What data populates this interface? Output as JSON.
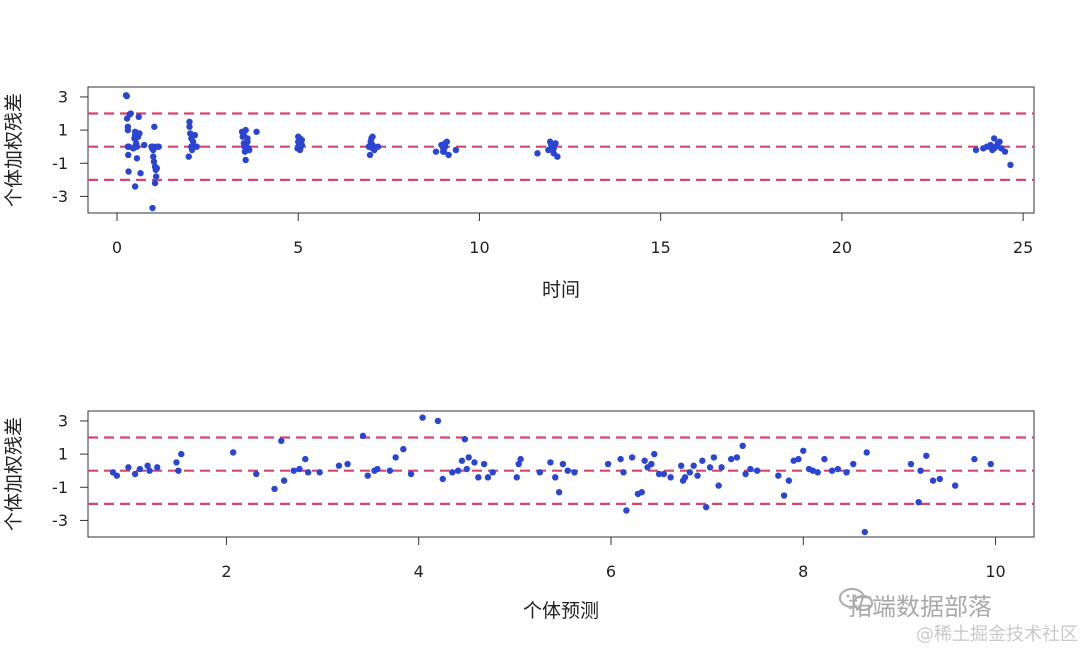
{
  "chart_data": [
    {
      "type": "scatter",
      "xlabel": "时间",
      "ylabel": "个体加权残差",
      "xlim": [
        -0.8,
        25.3
      ],
      "ylim": [
        -4.0,
        3.6
      ],
      "xticks": [
        0,
        5,
        10,
        15,
        20,
        25
      ],
      "yticks": [
        -3,
        -1,
        1,
        3
      ],
      "hlines": [
        -2,
        0,
        2
      ],
      "points_x": [
        0.25,
        0.27,
        0.28,
        0.3,
        0.3,
        0.3,
        0.31,
        0.32,
        0.33,
        0.35,
        0.38,
        0.5,
        0.5,
        0.52,
        0.53,
        0.55,
        0.55,
        0.57,
        0.58,
        0.6,
        0.62,
        0.65,
        0.5,
        0.45,
        0.5,
        0.48,
        0.75,
        0.95,
        0.97,
        1.0,
        1.0,
        1.02,
        1.03,
        1.05,
        1.05,
        1.07,
        1.08,
        1.1,
        1.1,
        1.15,
        0.98,
        1.0,
        2.0,
        2.0,
        2.02,
        2.05,
        2.05,
        2.07,
        2.1,
        2.12,
        2.15,
        2.2,
        1.98,
        3.45,
        3.47,
        3.5,
        3.52,
        3.53,
        3.55,
        3.55,
        3.58,
        3.6,
        3.62,
        3.65,
        3.5,
        3.6,
        3.85,
        5.0,
        5.0,
        5.02,
        5.05,
        5.05,
        5.07,
        5.1,
        5.1,
        4.98,
        5.0,
        6.95,
        7.0,
        7.0,
        7.02,
        7.05,
        7.05,
        7.1,
        7.2,
        7.0,
        6.98,
        7.05,
        8.8,
        8.95,
        9.0,
        9.02,
        9.05,
        9.05,
        9.1,
        9.15,
        9.35,
        9.0,
        9.05,
        11.6,
        11.9,
        11.95,
        12.0,
        12.02,
        12.05,
        12.05,
        12.1,
        12.15,
        11.98,
        23.7,
        23.9,
        24.0,
        24.1,
        24.15,
        24.2,
        24.2,
        24.25,
        24.3,
        24.4,
        24.5,
        24.65,
        24.35,
        24.1
      ],
      "points_y": [
        3.1,
        3.05,
        1.7,
        1.2,
        1.0,
        0.0,
        -0.5,
        -1.5,
        0.0,
        1.95,
        2.0,
        0.9,
        0.7,
        0.5,
        0.2,
        0.0,
        -0.7,
        0.8,
        0.6,
        1.8,
        0.8,
        -1.6,
        -2.4,
        -0.1,
        0.0,
        0.5,
        0.1,
        0.0,
        -0.1,
        -0.2,
        -0.6,
        -0.9,
        1.2,
        -1.2,
        -2.2,
        -1.4,
        -1.8,
        -1.3,
        0.0,
        0.0,
        -3.7,
        0.0,
        1.5,
        1.2,
        0.8,
        0.5,
        0.0,
        -0.2,
        0.3,
        0.0,
        0.7,
        0.0,
        -0.6,
        0.9,
        0.6,
        0.2,
        0.0,
        -0.3,
        -0.8,
        1.0,
        0.0,
        0.5,
        -0.1,
        -0.2,
        0.7,
        0.3,
        0.9,
        0.6,
        0.3,
        0.0,
        -0.2,
        0.5,
        0.0,
        0.1,
        0.4,
        -0.1,
        0.0,
        0.0,
        0.3,
        0.0,
        0.5,
        0.1,
        0.6,
        -0.2,
        0.0,
        0.3,
        -0.5,
        -0.1,
        -0.3,
        0.1,
        -0.1,
        -0.3,
        0.2,
        0.0,
        0.3,
        -0.5,
        -0.2,
        -0.3,
        0.0,
        -0.4,
        -0.2,
        0.3,
        -0.2,
        0.0,
        -0.1,
        -0.4,
        0.2,
        -0.6,
        0.1,
        -0.2,
        -0.1,
        0.0,
        0.1,
        -0.2,
        0.5,
        -0.1,
        0.0,
        0.2,
        -0.1,
        -0.3,
        -1.1,
        0.3,
        0.0,
        -0.3
      ]
    },
    {
      "type": "scatter",
      "xlabel": "个体预测",
      "ylabel": "个体加权残差",
      "xlim": [
        0.56,
        10.4
      ],
      "ylim": [
        -4.0,
        3.6
      ],
      "xticks": [
        2,
        4,
        6,
        8,
        10
      ],
      "yticks": [
        -3,
        -1,
        1,
        3
      ],
      "hlines": [
        -2,
        0,
        2
      ],
      "points_x": [
        0.82,
        0.86,
        0.98,
        1.05,
        1.1,
        1.18,
        1.2,
        1.28,
        1.48,
        1.5,
        1.53,
        2.07,
        2.31,
        2.5,
        2.57,
        2.6,
        2.7,
        2.76,
        2.82,
        2.85,
        2.97,
        3.17,
        3.26,
        3.42,
        3.47,
        3.54,
        3.57,
        3.7,
        3.76,
        3.84,
        3.92,
        4.04,
        4.2,
        4.25,
        4.35,
        4.41,
        4.45,
        4.48,
        4.5,
        4.52,
        4.58,
        4.62,
        4.68,
        4.72,
        4.77,
        5.02,
        5.04,
        5.06,
        5.26,
        5.37,
        5.42,
        5.46,
        5.5,
        5.55,
        5.62,
        5.97,
        6.1,
        6.13,
        6.16,
        6.22,
        6.28,
        6.32,
        6.35,
        6.38,
        6.42,
        6.45,
        6.5,
        6.55,
        6.62,
        6.73,
        6.75,
        6.77,
        6.82,
        6.86,
        6.9,
        6.95,
        6.99,
        7.03,
        7.07,
        7.12,
        7.15,
        7.25,
        7.31,
        7.37,
        7.4,
        7.45,
        7.52,
        7.74,
        7.8,
        7.85,
        7.9,
        7.95,
        8.0,
        8.06,
        8.1,
        8.15,
        8.22,
        8.3,
        8.36,
        8.45,
        8.52,
        8.64,
        8.66,
        9.12,
        9.2,
        9.22,
        9.28,
        9.35,
        9.42,
        9.58,
        9.78,
        9.95
      ],
      "points_y": [
        -0.1,
        -0.3,
        0.2,
        -0.2,
        0.1,
        0.3,
        0.0,
        0.2,
        0.5,
        0.0,
        1.0,
        1.1,
        -0.2,
        -1.1,
        1.8,
        -0.6,
        0.0,
        0.1,
        0.7,
        -0.1,
        -0.1,
        0.3,
        0.4,
        2.1,
        -0.3,
        0.0,
        0.1,
        0.0,
        0.8,
        1.3,
        -0.2,
        3.2,
        3.0,
        -0.5,
        -0.1,
        0.0,
        0.6,
        1.9,
        0.1,
        0.8,
        0.5,
        -0.4,
        0.4,
        -0.4,
        -0.1,
        -0.4,
        0.4,
        0.7,
        -0.1,
        0.5,
        -0.4,
        -1.3,
        0.4,
        0.0,
        -0.1,
        0.4,
        0.7,
        -0.1,
        -2.4,
        0.8,
        -1.4,
        -1.3,
        0.6,
        0.2,
        0.4,
        1.0,
        -0.2,
        -0.2,
        -0.4,
        0.3,
        -0.6,
        -0.4,
        -0.1,
        0.3,
        -0.3,
        0.6,
        -2.2,
        0.2,
        0.8,
        -0.9,
        0.2,
        0.7,
        0.8,
        1.5,
        -0.2,
        0.1,
        0.0,
        -0.3,
        -1.5,
        -0.6,
        0.6,
        0.7,
        1.2,
        0.1,
        0.0,
        -0.1,
        0.7,
        0.0,
        0.1,
        -0.1,
        0.4,
        -3.7,
        1.1,
        0.4,
        -1.9,
        0.0,
        0.9,
        -0.6,
        -0.5,
        -0.9,
        0.7,
        0.4
      ]
    }
  ],
  "watermark": {
    "line1": "拓端数据部落",
    "line2": "@稀土掘金技术社区"
  }
}
